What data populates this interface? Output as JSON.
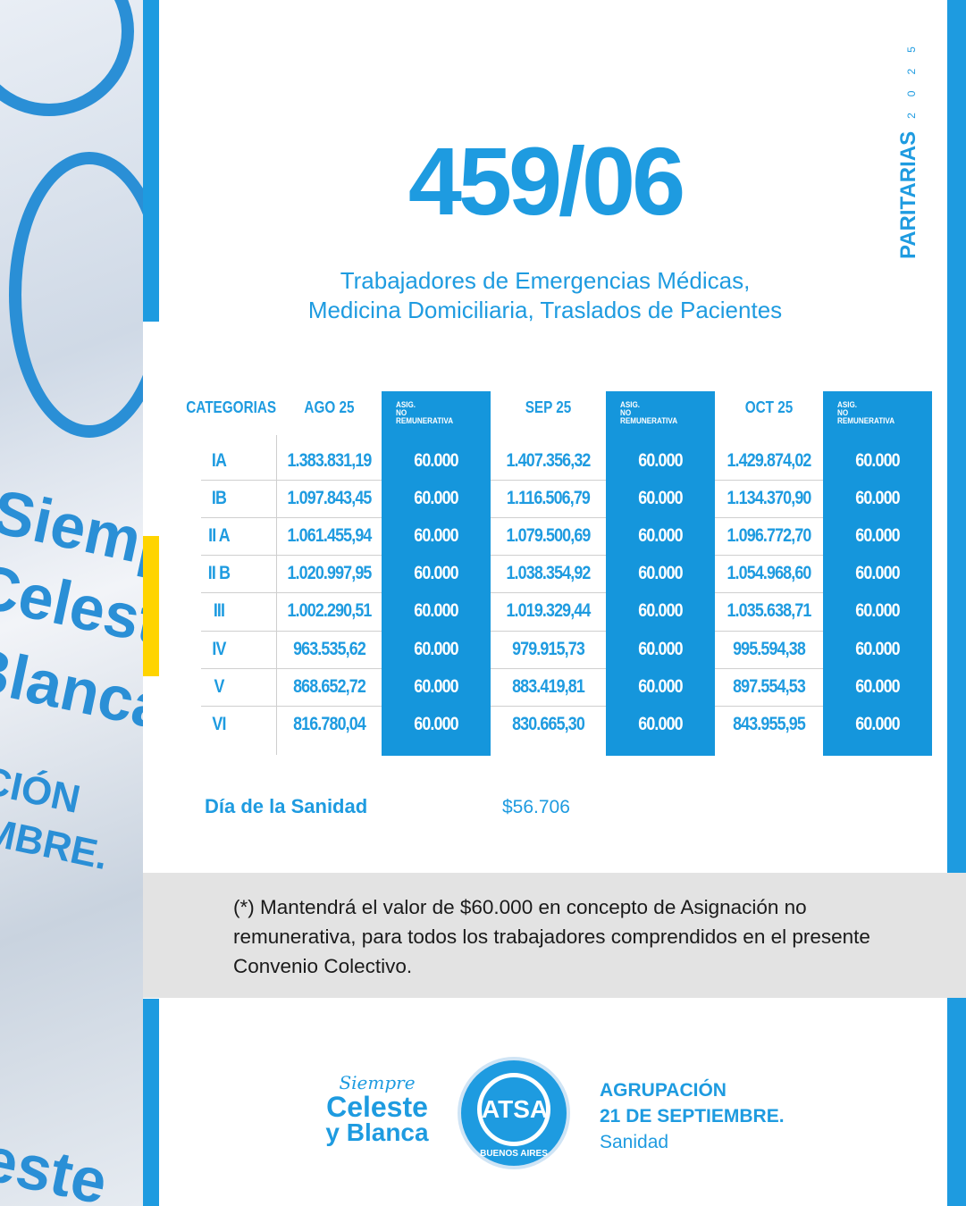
{
  "side_label": {
    "title": "PARITARIAS",
    "year": "2025"
  },
  "title": "459/06",
  "subtitle": [
    "Trabajadores de Emergencias Médicas,",
    "Medicina Domiciliaria, Traslados de Pacientes"
  ],
  "table": {
    "headers": [
      "CATEGORIAS",
      "AGO 25",
      "ASIG. NO REMUNERATIVA",
      "SEP 25",
      "ASIG. NO REMUNERATIVA",
      "OCT 25",
      "ASIG. NO REMUNERATIVA"
    ],
    "header_small": [
      "ASIG.",
      "NO REMUNERATIVA"
    ],
    "rows": [
      [
        "IA",
        "1.383.831,19",
        "60.000",
        "1.407.356,32",
        "60.000",
        "1.429.874,02",
        "60.000"
      ],
      [
        "IB",
        "1.097.843,45",
        "60.000",
        "1.116.506,79",
        "60.000",
        "1.134.370,90",
        "60.000"
      ],
      [
        "II A",
        "1.061.455,94",
        "60.000",
        "1.079.500,69",
        "60.000",
        "1.096.772,70",
        "60.000"
      ],
      [
        "II B",
        "1.020.997,95",
        "60.000",
        "1.038.354,92",
        "60.000",
        "1.054.968,60",
        "60.000"
      ],
      [
        "III",
        "1.002.290,51",
        "60.000",
        "1.019.329,44",
        "60.000",
        "1.035.638,71",
        "60.000"
      ],
      [
        "IV",
        "963.535,62",
        "60.000",
        "979.915,73",
        "60.000",
        "995.594,38",
        "60.000"
      ],
      [
        "V",
        "868.652,72",
        "60.000",
        "883.419,81",
        "60.000",
        "897.554,53",
        "60.000"
      ],
      [
        "VI",
        "816.780,04",
        "60.000",
        "830.665,30",
        "60.000",
        "843.955,95",
        "60.000"
      ]
    ]
  },
  "dia_sanidad": {
    "label": "Día de la Sanidad",
    "value": "$56.706"
  },
  "note": "(*) Mantendrá el valor de $60.000 en concepto de Asignación no remunerativa, para todos los trabajadores comprendidos en el presente Convenio Colectivo.",
  "footer": {
    "logo_text": [
      "Siempre",
      "Celeste",
      "y Blanca"
    ],
    "seal_text": [
      "ATSA",
      "BUENOS AIRES"
    ],
    "org": [
      "AGRUPACIÓN",
      "21 DE SEPTIEMBRE.",
      "Sanidad"
    ]
  },
  "colors": {
    "accent": "#1e9be0",
    "column_fill": "#1596dc",
    "highlight": "#ffd400",
    "note_bg": "#e3e3e3"
  }
}
